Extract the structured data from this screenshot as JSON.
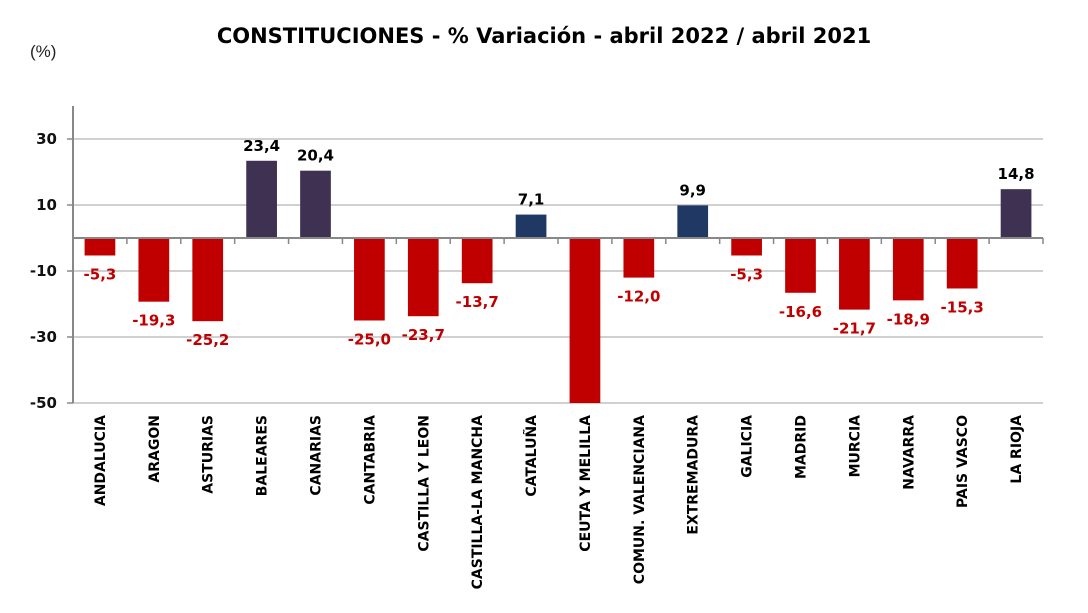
{
  "chart_data": {
    "type": "bar",
    "title": "CONSTITUCIONES - % Variación - abril 2022 / abril 2021",
    "ylabel": "(%)",
    "xlabel": "",
    "ylim": [
      -50,
      40
    ],
    "yticks": [
      30,
      10,
      -10,
      -30,
      -50
    ],
    "ytick_labels": [
      "30",
      "10",
      "-10",
      "-30",
      "-50"
    ],
    "grid": true,
    "legend": "none",
    "categories": [
      "ANDALUCIA",
      "ARAGON",
      "ASTURIAS",
      "BALEARES",
      "CANARIAS",
      "CANTABRIA",
      "CASTILLA Y LEON",
      "CASTILLA-LA MANCHA",
      "CATALUÑA",
      "CEUTA Y MELILLA",
      "COMUN. VALENCIANA",
      "EXTREMADURA",
      "GALICIA",
      "MADRID",
      "MURCIA",
      "NAVARRA",
      "PAIS VASCO",
      "LA RIOJA"
    ],
    "values": [
      -5.3,
      -19.3,
      -25.2,
      23.4,
      20.4,
      -25.0,
      -23.7,
      -13.7,
      7.1,
      -50,
      -12.0,
      9.9,
      -5.3,
      -16.6,
      -21.7,
      -18.9,
      -15.3,
      14.8
    ],
    "data_labels": [
      "-5,3",
      "-19,3",
      "-25,2",
      "23,4",
      "20,4",
      "-25,0",
      "-23,7",
      "-13,7",
      "7,1",
      "",
      "-12,0",
      "9,9",
      "-5,3",
      "-16,6",
      "-21,7",
      "-18,9",
      "-15,3",
      "14,8"
    ],
    "bar_colors": [
      "#C00000",
      "#C00000",
      "#C00000",
      "#3F3151",
      "#3F3151",
      "#C00000",
      "#C00000",
      "#C00000",
      "#1F3864",
      "#C00000",
      "#C00000",
      "#1F3864",
      "#C00000",
      "#C00000",
      "#C00000",
      "#C00000",
      "#C00000",
      "#3F3151"
    ],
    "label_colors": {
      "negative": "#C00000",
      "positive": "#000000"
    },
    "note": "CEUTA Y MELILLA bar extends beyond axis minimum (clipped at -50), no data label shown"
  }
}
